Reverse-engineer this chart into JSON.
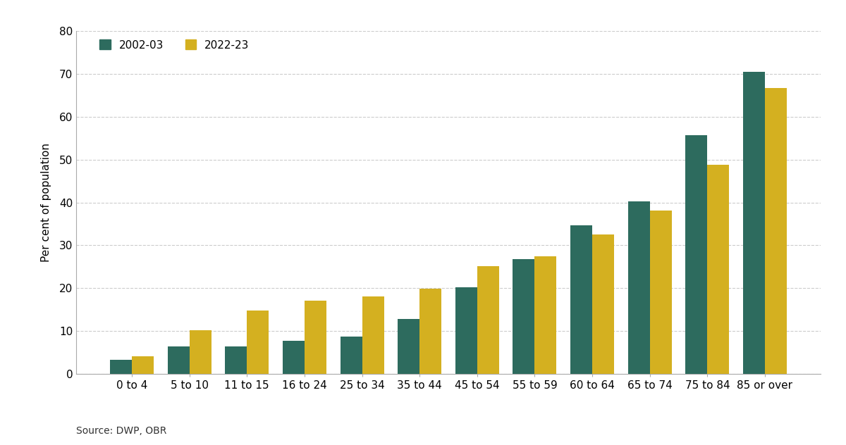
{
  "categories": [
    "0 to 4",
    "5 to 10",
    "11 to 15",
    "16 to 24",
    "25 to 34",
    "35 to 44",
    "45 to 54",
    "55 to 59",
    "60 to 64",
    "65 to 74",
    "75 to 84",
    "85 or over"
  ],
  "values_2002": [
    3.2,
    6.4,
    6.4,
    7.7,
    8.7,
    12.8,
    20.2,
    26.7,
    34.7,
    40.2,
    55.7,
    70.5
  ],
  "values_2022": [
    4.1,
    10.1,
    14.8,
    17.0,
    18.0,
    19.9,
    25.2,
    27.4,
    32.5,
    38.1,
    48.8,
    66.8
  ],
  "color_2002": "#2d6b5e",
  "color_2022": "#d4b020",
  "ylabel": "Per cent of population",
  "ylim": [
    0,
    80
  ],
  "yticks": [
    0,
    10,
    20,
    30,
    40,
    50,
    60,
    70,
    80
  ],
  "legend_2002": "2002-03",
  "legend_2022": "2022-23",
  "source_text": "Source: DWP, OBR",
  "background_color": "#ffffff",
  "grid_color": "#cccccc",
  "bar_width": 0.38
}
